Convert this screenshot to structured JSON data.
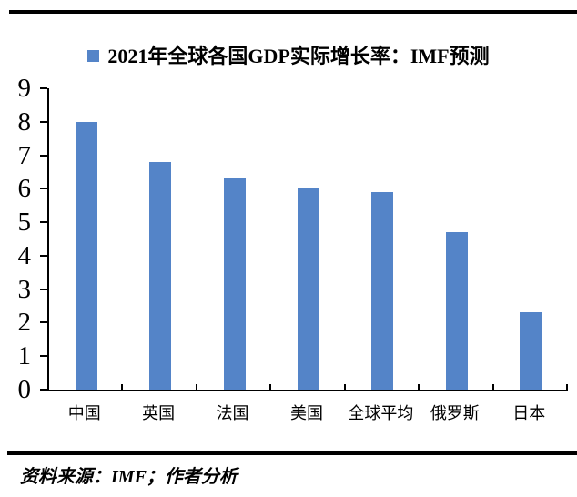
{
  "colors": {
    "bar": "#5484C8",
    "rule": "#000000",
    "axis": "#000000",
    "text": "#000000",
    "background": "#ffffff"
  },
  "legend": {
    "marker": "blue-square",
    "label": "2021年全球各国GDP实际增长率：IMF预测"
  },
  "chart_data": {
    "type": "bar",
    "title": "2021年全球各国GDP实际增长率：IMF预测",
    "categories": [
      "中国",
      "英国",
      "法国",
      "美国",
      "全球平均",
      "俄罗斯",
      "日本"
    ],
    "values": [
      8.0,
      6.8,
      6.3,
      6.0,
      5.9,
      4.7,
      2.3
    ],
    "xlabel": "",
    "ylabel": "",
    "ylim": [
      0,
      9
    ],
    "yticks": [
      0,
      1,
      2,
      3,
      4,
      5,
      6,
      7,
      8,
      9
    ],
    "grid": false,
    "legend_position": "top-center",
    "bar_color": "#5484C8"
  },
  "footer": {
    "source_note": "资料来源：IMF；作者分析"
  }
}
